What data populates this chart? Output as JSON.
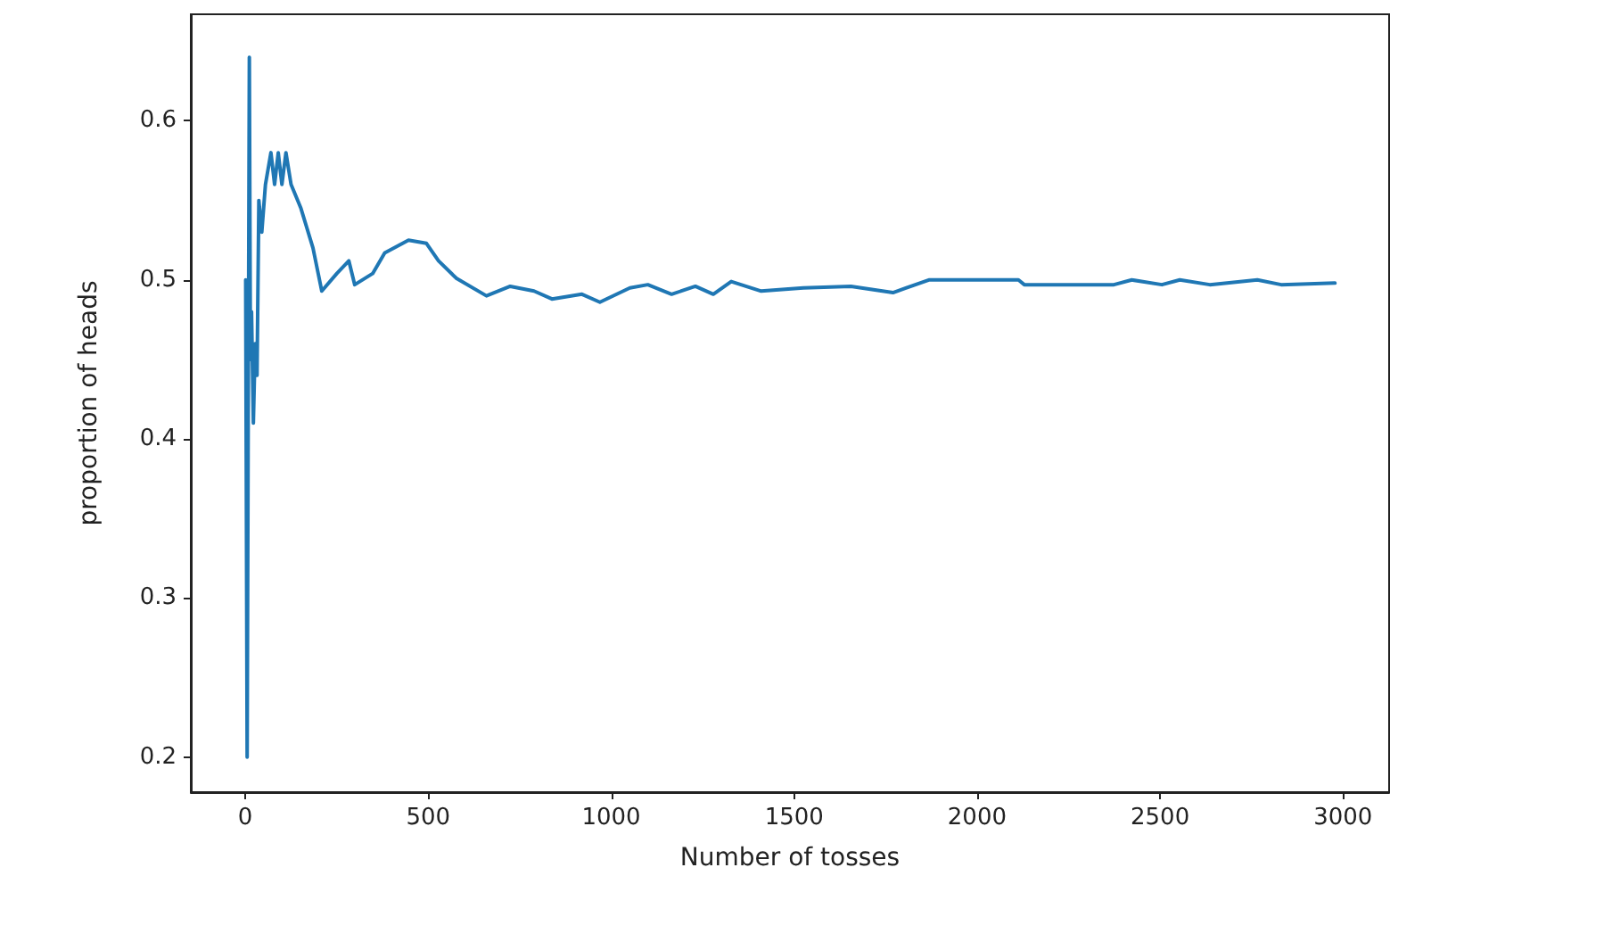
{
  "chart_data": {
    "type": "line",
    "xlabel": "Number of tosses",
    "ylabel": "proportion of heads",
    "x": [
      1,
      5,
      11,
      14,
      17,
      22,
      27,
      32,
      37,
      45,
      55,
      70,
      80,
      90,
      100,
      111,
      125,
      152,
      185,
      209,
      250,
      283,
      299,
      348,
      381,
      446,
      495,
      528,
      577,
      659,
      724,
      789,
      838,
      920,
      969,
      1051,
      1100,
      1165,
      1230,
      1279,
      1328,
      1410,
      1525,
      1655,
      1770,
      1868,
      2113,
      2129,
      2374,
      2423,
      2505,
      2554,
      2636,
      2766,
      2831,
      2978
    ],
    "series": [
      {
        "color": "#1f77b4",
        "values": [
          0.5,
          0.2,
          0.64,
          0.45,
          0.48,
          0.41,
          0.46,
          0.44,
          0.55,
          0.53,
          0.56,
          0.58,
          0.56,
          0.58,
          0.56,
          0.58,
          0.56,
          0.545,
          0.52,
          0.493,
          0.504,
          0.512,
          0.497,
          0.504,
          0.517,
          0.525,
          0.523,
          0.512,
          0.501,
          0.49,
          0.496,
          0.493,
          0.488,
          0.491,
          0.486,
          0.495,
          0.497,
          0.491,
          0.496,
          0.491,
          0.499,
          0.493,
          0.495,
          0.496,
          0.492,
          0.5,
          0.5,
          0.497,
          0.497,
          0.5,
          0.497,
          0.5,
          0.497,
          0.5,
          0.497,
          0.498
        ]
      }
    ],
    "xlim": [
      -149,
      3126
    ],
    "xticks": [
      0,
      500,
      1000,
      1500,
      2000,
      2500,
      3000
    ],
    "ylim": [
      0.178,
      0.667
    ],
    "yticks": [
      0.2,
      0.3,
      0.4,
      0.5,
      0.6
    ],
    "grid": false,
    "marker": "none",
    "line_style": "solid"
  }
}
